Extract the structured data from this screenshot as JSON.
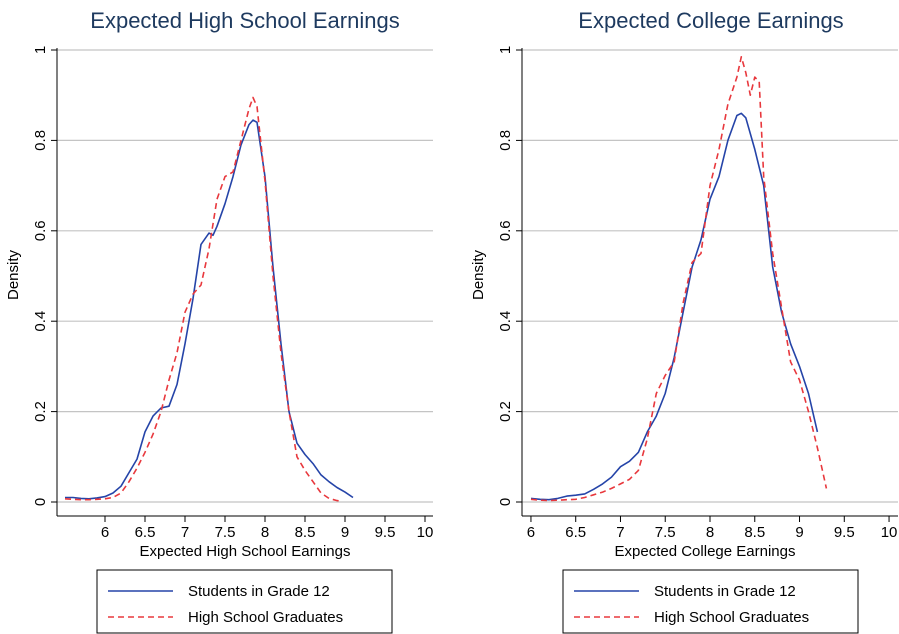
{
  "chart_data": [
    {
      "type": "line",
      "title": "Expected High School Earnings",
      "xlabel": "Expected High School Earnings",
      "ylabel": "Density",
      "xlim": [
        5.4,
        10.1
      ],
      "ylim": [
        0,
        1.0
      ],
      "xticks": [
        6,
        6.5,
        7,
        7.5,
        8,
        8.5,
        9,
        9.5,
        10
      ],
      "xtick_labels": [
        "6",
        "6.5",
        "7",
        "7.5",
        "8",
        "8.5",
        "9",
        "9.5",
        "10"
      ],
      "yticks": [
        0,
        0.2,
        0.4,
        0.6,
        0.8,
        1
      ],
      "ytick_labels": [
        "0",
        "0.2",
        "0.4",
        "0.6",
        "0.8",
        "1"
      ],
      "grid": true,
      "legend_position": "bottom",
      "series": [
        {
          "name": "Students in Grade 12",
          "color": "#2544a8",
          "style": "solid",
          "x": [
            5.5,
            5.6,
            5.7,
            5.8,
            5.9,
            6.0,
            6.1,
            6.2,
            6.3,
            6.4,
            6.5,
            6.6,
            6.7,
            6.8,
            6.9,
            7.0,
            7.1,
            7.2,
            7.3,
            7.35,
            7.4,
            7.5,
            7.6,
            7.7,
            7.8,
            7.85,
            7.9,
            8.0,
            8.1,
            8.2,
            8.3,
            8.4,
            8.5,
            8.6,
            8.7,
            8.8,
            8.9,
            9.0,
            9.1
          ],
          "y": [
            0.01,
            0.01,
            0.008,
            0.007,
            0.009,
            0.012,
            0.02,
            0.035,
            0.065,
            0.095,
            0.155,
            0.19,
            0.208,
            0.212,
            0.26,
            0.35,
            0.45,
            0.57,
            0.595,
            0.59,
            0.61,
            0.66,
            0.72,
            0.79,
            0.835,
            0.845,
            0.84,
            0.72,
            0.52,
            0.35,
            0.2,
            0.13,
            0.105,
            0.085,
            0.06,
            0.045,
            0.032,
            0.022,
            0.01
          ]
        },
        {
          "name": "High School Graduates",
          "color": "#e8383d",
          "style": "dashed",
          "x": [
            5.5,
            5.6,
            5.7,
            5.8,
            5.9,
            6.0,
            6.1,
            6.2,
            6.3,
            6.4,
            6.5,
            6.6,
            6.7,
            6.8,
            6.9,
            7.0,
            7.1,
            7.2,
            7.3,
            7.4,
            7.5,
            7.6,
            7.7,
            7.8,
            7.85,
            7.9,
            8.0,
            8.1,
            8.2,
            8.3,
            8.4,
            8.5,
            8.6,
            8.7,
            8.8,
            8.9,
            8.95
          ],
          "y": [
            0.007,
            0.006,
            0.005,
            0.005,
            0.006,
            0.007,
            0.01,
            0.02,
            0.045,
            0.075,
            0.11,
            0.15,
            0.2,
            0.27,
            0.33,
            0.42,
            0.46,
            0.48,
            0.56,
            0.67,
            0.72,
            0.73,
            0.8,
            0.87,
            0.895,
            0.875,
            0.71,
            0.5,
            0.33,
            0.2,
            0.1,
            0.07,
            0.045,
            0.02,
            0.008,
            0.003,
            0.002
          ]
        }
      ]
    },
    {
      "type": "line",
      "title": "Expected College Earnings",
      "xlabel": "Expected College Earnings",
      "ylabel": "Density",
      "xlim": [
        5.9,
        10.1
      ],
      "ylim": [
        0,
        1.0
      ],
      "xticks": [
        6,
        6.5,
        7,
        7.5,
        8,
        8.5,
        9,
        9.5,
        10
      ],
      "xtick_labels": [
        "6",
        "6.5",
        "7",
        "7.5",
        "8",
        "8.5",
        "9",
        "9.5",
        "10"
      ],
      "yticks": [
        0,
        0.2,
        0.4,
        0.6,
        0.8,
        1
      ],
      "ytick_labels": [
        "0",
        "0.2",
        "0.4",
        "0.6",
        "0.8",
        "1"
      ],
      "grid": true,
      "legend_position": "bottom",
      "series": [
        {
          "name": "Students in Grade 12",
          "color": "#2544a8",
          "style": "solid",
          "x": [
            6.0,
            6.1,
            6.2,
            6.3,
            6.4,
            6.5,
            6.6,
            6.7,
            6.8,
            6.9,
            7.0,
            7.1,
            7.2,
            7.3,
            7.4,
            7.5,
            7.6,
            7.7,
            7.8,
            7.9,
            8.0,
            8.1,
            8.2,
            8.3,
            8.35,
            8.4,
            8.5,
            8.6,
            8.7,
            8.8,
            8.9,
            9.0,
            9.1,
            9.2
          ],
          "y": [
            0.008,
            0.006,
            0.005,
            0.008,
            0.013,
            0.015,
            0.018,
            0.028,
            0.04,
            0.055,
            0.078,
            0.09,
            0.11,
            0.155,
            0.19,
            0.24,
            0.32,
            0.42,
            0.52,
            0.58,
            0.67,
            0.72,
            0.8,
            0.855,
            0.86,
            0.85,
            0.78,
            0.7,
            0.52,
            0.42,
            0.35,
            0.3,
            0.24,
            0.155
          ]
        },
        {
          "name": "High School Graduates",
          "color": "#e8383d",
          "style": "dashed",
          "x": [
            6.0,
            6.1,
            6.2,
            6.3,
            6.4,
            6.5,
            6.6,
            6.7,
            6.8,
            6.9,
            7.0,
            7.1,
            7.2,
            7.3,
            7.4,
            7.5,
            7.6,
            7.7,
            7.8,
            7.9,
            8.0,
            8.1,
            8.2,
            8.3,
            8.35,
            8.4,
            8.45,
            8.5,
            8.55,
            8.6,
            8.7,
            8.8,
            8.9,
            9.0,
            9.1,
            9.2,
            9.3
          ],
          "y": [
            0.006,
            0.004,
            0.003,
            0.004,
            0.005,
            0.006,
            0.01,
            0.016,
            0.022,
            0.03,
            0.04,
            0.05,
            0.07,
            0.14,
            0.24,
            0.28,
            0.31,
            0.44,
            0.53,
            0.55,
            0.7,
            0.78,
            0.88,
            0.94,
            0.985,
            0.95,
            0.9,
            0.94,
            0.93,
            0.72,
            0.55,
            0.43,
            0.31,
            0.27,
            0.2,
            0.12,
            0.03
          ]
        }
      ]
    }
  ]
}
